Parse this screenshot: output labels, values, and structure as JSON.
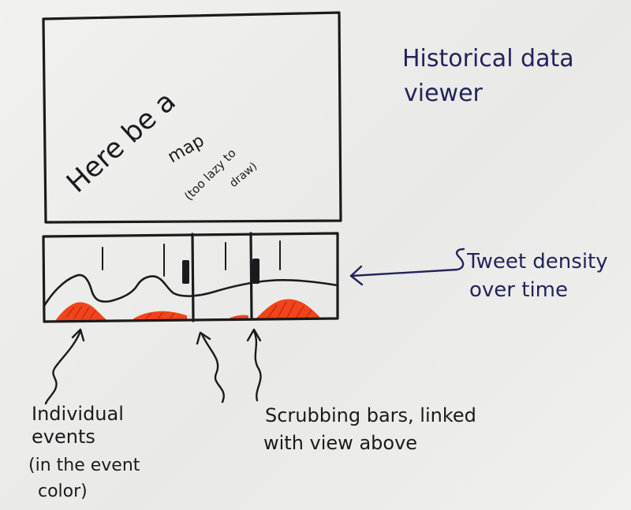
{
  "title": {
    "line1": "Historical data",
    "line2": "viewer"
  },
  "map_panel": {
    "main_text": "Here be a",
    "sub_line1": "map",
    "sub_line2": "(too lazy to",
    "sub_line3": "draw)"
  },
  "annotations": {
    "density": {
      "line1": "Tweet density",
      "line2": "over time"
    },
    "events": {
      "line1": "Individual",
      "line2": "events",
      "line3": "(in the event",
      "line4": "color)"
    },
    "scrubbing": {
      "line1": "Scrubbing bars, linked",
      "line2": "with view above"
    }
  },
  "colors": {
    "ink_black": "#1b1b1d",
    "ink_blue": "#23245a",
    "event_color": "#f0441a",
    "paper": "#ececeb"
  }
}
